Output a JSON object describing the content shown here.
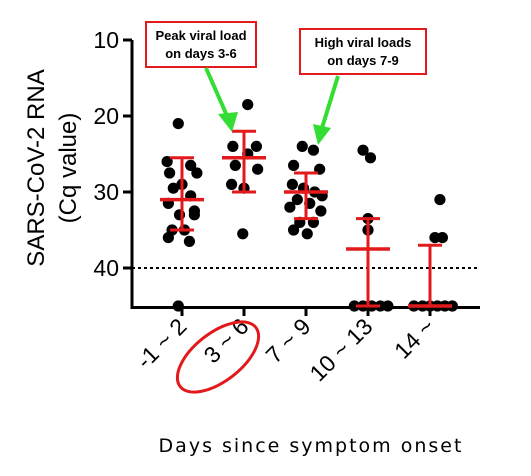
{
  "chart_data": {
    "type": "scatter",
    "ylabel_line1": "SARS-CoV-2 RNA",
    "ylabel_line2": "(Cq value)",
    "xlabel": "Days since symptom onset",
    "y_reversed": true,
    "ylim": [
      10,
      45
    ],
    "yticks": [
      10,
      20,
      30,
      40
    ],
    "reference_line": {
      "y": 40,
      "style": "dotted"
    },
    "categories": [
      "-1 ~ 2",
      "3 ~ 6",
      "7 ~ 9",
      "10 ~ 13",
      "14 ~"
    ],
    "highlighted_category": "3 ~ 6",
    "groups": [
      {
        "category": "-1 ~ 2",
        "points": [
          [
            -0.06,
            21
          ],
          [
            -0.24,
            26
          ],
          [
            0.14,
            26.5
          ],
          [
            -0.2,
            27.5
          ],
          [
            0.24,
            27.5
          ],
          [
            0.0,
            29
          ],
          [
            -0.14,
            29.5
          ],
          [
            0.14,
            30.5
          ],
          [
            -0.22,
            31.5
          ],
          [
            0.2,
            32.5
          ],
          [
            -0.04,
            33
          ],
          [
            0.2,
            33
          ],
          [
            -0.16,
            35
          ],
          [
            0.04,
            35
          ],
          [
            -0.22,
            36
          ],
          [
            0.12,
            36.5
          ],
          [
            -0.06,
            45
          ]
        ],
        "median": 31,
        "iqr": [
          25.5,
          35
        ]
      },
      {
        "category": "3 ~ 6",
        "points": [
          [
            0.06,
            18.5
          ],
          [
            -0.18,
            24
          ],
          [
            0.2,
            24
          ],
          [
            0.06,
            25
          ],
          [
            -0.14,
            26.5
          ],
          [
            0.22,
            27
          ],
          [
            -0.2,
            29
          ],
          [
            0.0,
            29.5
          ],
          [
            -0.02,
            35.5
          ]
        ],
        "median": 25.5,
        "iqr": [
          22,
          30
        ]
      },
      {
        "category": "7 ~ 9",
        "points": [
          [
            -0.06,
            24
          ],
          [
            0.12,
            24.5
          ],
          [
            -0.2,
            26.5
          ],
          [
            0.22,
            27
          ],
          [
            -0.22,
            29
          ],
          [
            -0.04,
            29.5
          ],
          [
            0.14,
            30
          ],
          [
            0.26,
            30.5
          ],
          [
            -0.14,
            31
          ],
          [
            0.06,
            31.5
          ],
          [
            -0.26,
            32
          ],
          [
            0.24,
            32.5
          ],
          [
            -0.1,
            34
          ],
          [
            0.12,
            34
          ],
          [
            -0.2,
            35
          ],
          [
            0.02,
            35.5
          ]
        ],
        "median": 30,
        "iqr": [
          27.5,
          33.5
        ]
      },
      {
        "category": "10 ~ 13",
        "points": [
          [
            -0.08,
            24.5
          ],
          [
            0.04,
            25.5
          ],
          [
            0.0,
            33.5
          ],
          [
            0.0,
            35
          ],
          [
            -0.22,
            45
          ],
          [
            -0.08,
            45
          ],
          [
            0.06,
            45
          ],
          [
            0.2,
            45
          ],
          [
            0.32,
            45
          ]
        ],
        "median": 37.5,
        "iqr": [
          33.5,
          45
        ]
      },
      {
        "category": "14 ~",
        "points": [
          [
            0.16,
            31
          ],
          [
            0.08,
            36
          ],
          [
            0.2,
            36
          ],
          [
            -0.26,
            45
          ],
          [
            -0.12,
            45
          ],
          [
            0.0,
            45
          ],
          [
            0.12,
            45
          ],
          [
            0.24,
            45
          ],
          [
            0.36,
            45
          ]
        ],
        "median": 45,
        "iqr": [
          37,
          45
        ]
      }
    ],
    "annotations": [
      {
        "text_line1": "Peak viral load",
        "text_line2": "on days 3-6",
        "points_to_category": "3 ~ 6"
      },
      {
        "text_line1": "High viral loads",
        "text_line2": "on days 7-9",
        "points_to_category": "7 ~ 9"
      }
    ]
  },
  "colors": {
    "point": "#000000",
    "median_iqr": "#e31a1c",
    "callout_border": "#e31a1c",
    "arrow": "#33dd33",
    "highlight_ellipse": "#e31a1c"
  }
}
